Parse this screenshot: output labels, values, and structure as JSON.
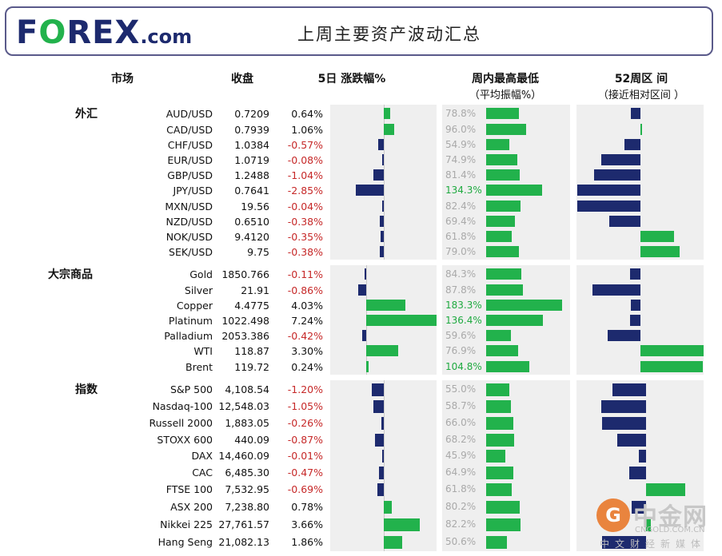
{
  "header": {
    "logo_text_1": "F",
    "logo_text_2": "REX",
    "logo_o": "O",
    "logo_suffix": ".com",
    "title": "上周主要资产波动汇总"
  },
  "columns": {
    "market": "市场",
    "close": "收盘",
    "change5d": "5日 涨跌幅%",
    "weekly_range": "周内最高最低",
    "weekly_range_sub": "（平均振幅%）",
    "week52": "52周区 间",
    "week52_sub": "（接近相对区间 ）"
  },
  "colors": {
    "positive": "#22b24c",
    "negative": "#1d2a6e",
    "negative_text": "#c62828",
    "highlight_text": "#1faa40",
    "panel_bg": "#efefef"
  },
  "chart_data": {
    "type": "table",
    "groups": [
      {
        "name": "外汇",
        "rows": [
          {
            "ticker": "AUD/USD",
            "close": "0.7209",
            "chg": "0.64%",
            "chg_value": 0.64,
            "range": "78.8%",
            "range_value": 78.8,
            "w52": -0.15
          },
          {
            "ticker": "CAD/USD",
            "close": "0.7939",
            "chg": "1.06%",
            "chg_value": 1.06,
            "range": "96.0%",
            "range_value": 96.0,
            "w52": 0.02
          },
          {
            "ticker": "CHF/USD",
            "close": "1.0384",
            "chg": "-0.57%",
            "chg_value": -0.57,
            "range": "54.9%",
            "range_value": 54.9,
            "w52": -0.25
          },
          {
            "ticker": "EUR/USD",
            "close": "1.0719",
            "chg": "-0.08%",
            "chg_value": -0.08,
            "range": "74.9%",
            "range_value": 74.9,
            "w52": -0.62
          },
          {
            "ticker": "GBP/USD",
            "close": "1.2488",
            "chg": "-1.04%",
            "chg_value": -1.04,
            "range": "81.4%",
            "range_value": 81.4,
            "w52": -0.74
          },
          {
            "ticker": "JPY/USD",
            "close": "0.7641",
            "chg": "-2.85%",
            "chg_value": -2.85,
            "range": "134.3%",
            "range_value": 134.3,
            "w52": -1.0
          },
          {
            "ticker": "MXN/USD",
            "close": "19.56",
            "chg": "-0.04%",
            "chg_value": -0.04,
            "range": "82.4%",
            "range_value": 82.4,
            "w52": -1.0
          },
          {
            "ticker": "NZD/USD",
            "close": "0.6510",
            "chg": "-0.38%",
            "chg_value": -0.38,
            "range": "69.4%",
            "range_value": 69.4,
            "w52": -0.49
          },
          {
            "ticker": "NOK/USD",
            "close": "9.4120",
            "chg": "-0.35%",
            "chg_value": -0.35,
            "range": "61.8%",
            "range_value": 61.8,
            "w52": 0.53
          },
          {
            "ticker": "SEK/USD",
            "close": "9.75",
            "chg": "-0.38%",
            "chg_value": -0.38,
            "range": "79.0%",
            "range_value": 79.0,
            "w52": 0.62
          }
        ]
      },
      {
        "name": "大宗商品",
        "rows": [
          {
            "ticker": "Gold",
            "close": "1850.766",
            "chg": "-0.11%",
            "chg_value": -0.11,
            "range": "84.3%",
            "range_value": 84.3,
            "w52": -0.16
          },
          {
            "ticker": "Silver",
            "close": "21.91",
            "chg": "-0.86%",
            "chg_value": -0.86,
            "range": "87.8%",
            "range_value": 87.8,
            "w52": -0.76
          },
          {
            "ticker": "Copper",
            "close": "4.4775",
            "chg": "4.03%",
            "chg_value": 4.03,
            "range": "183.3%",
            "range_value": 183.3,
            "w52": -0.15
          },
          {
            "ticker": "Platinum",
            "close": "1022.498",
            "chg": "7.24%",
            "chg_value": 7.24,
            "range": "136.4%",
            "range_value": 136.4,
            "w52": -0.17
          },
          {
            "ticker": "Palladium",
            "close": "2053.386",
            "chg": "-0.42%",
            "chg_value": -0.42,
            "range": "59.6%",
            "range_value": 59.6,
            "w52": -0.52
          },
          {
            "ticker": "WTI",
            "close": "118.87",
            "chg": "3.30%",
            "chg_value": 3.3,
            "range": "76.9%",
            "range_value": 76.9,
            "w52": 1.0
          },
          {
            "ticker": "Brent",
            "close": "119.72",
            "chg": "0.24%",
            "chg_value": 0.24,
            "range": "104.8%",
            "range_value": 104.8,
            "w52": 0.99
          }
        ]
      },
      {
        "name": "指数",
        "rows": [
          {
            "ticker": "S&P 500",
            "close": "4,108.54",
            "chg": "-1.20%",
            "chg_value": -1.2,
            "range": "55.0%",
            "range_value": 55.0,
            "w52": -0.53
          },
          {
            "ticker": "Nasdaq-100",
            "close": "12,548.03",
            "chg": "-1.05%",
            "chg_value": -1.05,
            "range": "58.7%",
            "range_value": 58.7,
            "w52": -0.71
          },
          {
            "ticker": "Russell 2000",
            "close": "1,883.05",
            "chg": "-0.26%",
            "chg_value": -0.26,
            "range": "66.0%",
            "range_value": 66.0,
            "w52": -0.69
          },
          {
            "ticker": "STOXX 600",
            "close": "440.09",
            "chg": "-0.87%",
            "chg_value": -0.87,
            "range": "68.2%",
            "range_value": 68.2,
            "w52": -0.46
          },
          {
            "ticker": "DAX",
            "close": "14,460.09",
            "chg": "-0.01%",
            "chg_value": -0.01,
            "range": "45.9%",
            "range_value": 45.9,
            "w52": -0.12
          },
          {
            "ticker": "CAC",
            "close": "6,485.30",
            "chg": "-0.47%",
            "chg_value": -0.47,
            "range": "64.9%",
            "range_value": 64.9,
            "w52": -0.27
          },
          {
            "ticker": "FTSE 100",
            "close": "7,532.95",
            "chg": "-0.69%",
            "chg_value": -0.69,
            "range": "61.8%",
            "range_value": 61.8,
            "w52": 0.62
          },
          {
            "ticker": "ASX 200",
            "close": "7,238.80",
            "chg": "0.78%",
            "chg_value": 0.78,
            "range": "80.2%",
            "range_value": 80.2,
            "w52": -0.23
          },
          {
            "ticker": "Nikkei 225",
            "close": "27,761.57",
            "chg": "3.66%",
            "chg_value": 3.66,
            "range": "82.2%",
            "range_value": 82.2,
            "w52": 0.08
          },
          {
            "ticker": "Hang Seng",
            "close": "21,082.13",
            "chg": "1.86%",
            "chg_value": 1.86,
            "range": "50.6%",
            "range_value": 50.6,
            "w52": -0.69
          }
        ]
      }
    ]
  },
  "watermark": {
    "circle": "G",
    "name": "中金网",
    "url": "CNGOLD.COM.CN",
    "tag": "中文财经新媒体"
  }
}
